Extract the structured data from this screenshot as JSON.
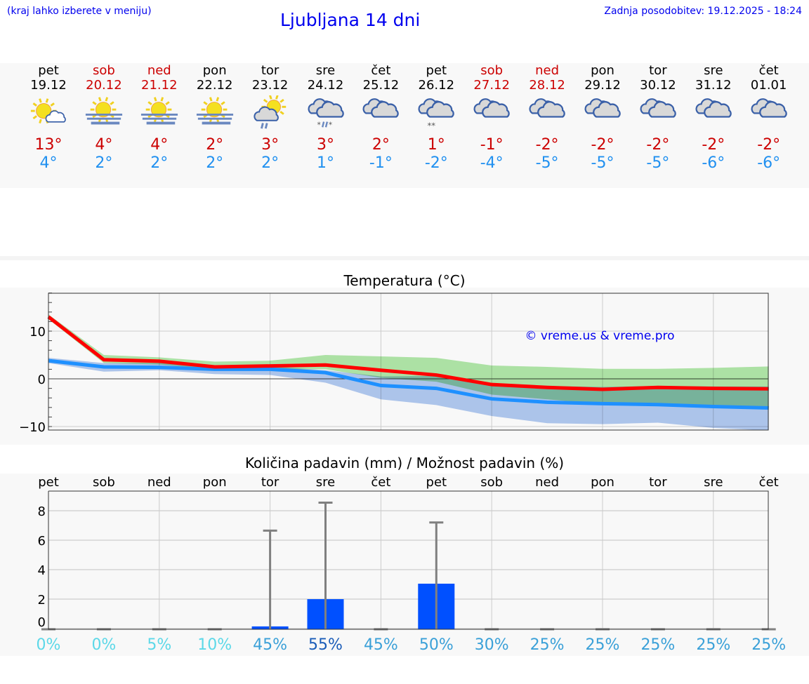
{
  "header": {
    "hint": "(kraj lahko izberete v meniju)",
    "title": "Ljubljana 14 dni",
    "updated": "Zadnja posodobitev: 19.12.2025 - 18:24"
  },
  "days": [
    {
      "name": "pet",
      "date": "19.12",
      "weekend": false,
      "icon": "sun-partly-cloudy-icon",
      "max": "13°",
      "min": "4°"
    },
    {
      "name": "sob",
      "date": "20.12",
      "weekend": true,
      "icon": "sun-fog-icon",
      "max": "4°",
      "min": "2°"
    },
    {
      "name": "ned",
      "date": "21.12",
      "weekend": true,
      "icon": "sun-fog-icon",
      "max": "4°",
      "min": "2°"
    },
    {
      "name": "pon",
      "date": "22.12",
      "weekend": false,
      "icon": "sun-fog-icon",
      "max": "2°",
      "min": "2°"
    },
    {
      "name": "tor",
      "date": "23.12",
      "weekend": false,
      "icon": "sun-cloud-rain-icon",
      "max": "3°",
      "min": "2°"
    },
    {
      "name": "sre",
      "date": "24.12",
      "weekend": false,
      "icon": "cloud-sleet-icon",
      "max": "3°",
      "min": "1°"
    },
    {
      "name": "čet",
      "date": "25.12",
      "weekend": false,
      "icon": "cloudy-icon",
      "max": "2°",
      "min": "-1°"
    },
    {
      "name": "pet",
      "date": "26.12",
      "weekend": false,
      "icon": "cloud-snow-icon",
      "max": "1°",
      "min": "-2°"
    },
    {
      "name": "sob",
      "date": "27.12",
      "weekend": true,
      "icon": "cloudy-icon",
      "max": "-1°",
      "min": "-4°"
    },
    {
      "name": "ned",
      "date": "28.12",
      "weekend": true,
      "icon": "cloudy-icon",
      "max": "-2°",
      "min": "-5°"
    },
    {
      "name": "pon",
      "date": "29.12",
      "weekend": false,
      "icon": "cloudy-icon",
      "max": "-2°",
      "min": "-5°"
    },
    {
      "name": "tor",
      "date": "30.12",
      "weekend": false,
      "icon": "cloudy-icon",
      "max": "-2°",
      "min": "-5°"
    },
    {
      "name": "sre",
      "date": "31.12",
      "weekend": false,
      "icon": "cloudy-icon",
      "max": "-2°",
      "min": "-6°"
    },
    {
      "name": "čet",
      "date": "01.01",
      "weekend": false,
      "icon": "cloudy-icon",
      "max": "-2°",
      "min": "-6°"
    }
  ],
  "colors": {
    "weekday": "#000000",
    "weekend": "#cc0000",
    "max": "#ff0000",
    "min": "#1e90ff",
    "max_band": "#a8e6a0",
    "min_band": "#a8c4f0",
    "bar": "#0050ff",
    "whisker": "#808080"
  },
  "chart_data": [
    {
      "type": "line",
      "title": "Temperatura (°C)",
      "watermark": "© vreme.us & vreme.pro",
      "ylim": [
        -10.5,
        18
      ],
      "yticks": [
        -10,
        0,
        10
      ],
      "grid": true,
      "x": [
        "19.12",
        "20.12",
        "21.12",
        "22.12",
        "23.12",
        "24.12",
        "25.12",
        "26.12",
        "27.12",
        "28.12",
        "29.12",
        "30.12",
        "31.12",
        "01.01"
      ],
      "series": [
        {
          "role": "max",
          "values": [
            13,
            4,
            3.7,
            2.5,
            2.7,
            2.9,
            1.8,
            0.8,
            -1.2,
            -1.8,
            -2.2,
            -1.8,
            -2,
            -2.1
          ],
          "band_high": [
            13.5,
            5,
            4.5,
            3.6,
            3.8,
            5,
            4.7,
            4.4,
            2.8,
            2.5,
            2.1,
            2.1,
            2.3,
            2.6
          ],
          "band_low": [
            12.5,
            3.3,
            3,
            2,
            2,
            2,
            0.2,
            -0.6,
            -3.3,
            -4.3,
            -5.3,
            -5.3,
            -5.8,
            -6
          ]
        },
        {
          "role": "min",
          "values": [
            3.8,
            2.5,
            2.4,
            2,
            2,
            1.3,
            -1.4,
            -2,
            -4.2,
            -4.9,
            -5.2,
            -5.4,
            -5.8,
            -6.1
          ],
          "band_high": [
            4.4,
            3.3,
            3.3,
            2.6,
            2.6,
            1.8,
            0.5,
            0.6,
            -1,
            -1.5,
            -1.7,
            -1.5,
            -1.6,
            -1.6
          ],
          "band_low": [
            3.3,
            1.5,
            1.8,
            1,
            0.8,
            -0.8,
            -4.3,
            -5.5,
            -7.8,
            -9.3,
            -9.5,
            -9.2,
            -10.3,
            -10.8
          ]
        }
      ]
    },
    {
      "type": "bar",
      "title": "Količina padavin (mm) / Možnost padavin (%)",
      "ylim": [
        -0.1,
        9.3
      ],
      "yticks": [
        0,
        2,
        4,
        6,
        8
      ],
      "grid": true,
      "categories": [
        "pet",
        "sob",
        "ned",
        "pon",
        "tor",
        "sre",
        "čet",
        "pet",
        "sob",
        "ned",
        "pon",
        "tor",
        "sre",
        "čet"
      ],
      "values": [
        0,
        0,
        0,
        0,
        0.1,
        1.95,
        0,
        3.0,
        0,
        0,
        0,
        0,
        0,
        0
      ],
      "error_high": [
        0,
        0,
        0,
        0,
        6.65,
        8.55,
        0,
        7.2,
        0,
        0,
        0,
        0,
        0,
        0
      ],
      "probability": [
        "0%",
        "0%",
        "5%",
        "10%",
        "45%",
        "55%",
        "45%",
        "50%",
        "30%",
        "25%",
        "25%",
        "25%",
        "25%",
        "25%"
      ],
      "probability_colors": [
        "#5cd8e8",
        "#5cd8e8",
        "#5cd8e8",
        "#5cd8e8",
        "#3aa0d8",
        "#1a5cb8",
        "#3aa0d8",
        "#3aa0d8",
        "#3aa0d8",
        "#3aa0d8",
        "#3aa0d8",
        "#3aa0d8",
        "#3aa0d8",
        "#3aa0d8"
      ]
    }
  ]
}
